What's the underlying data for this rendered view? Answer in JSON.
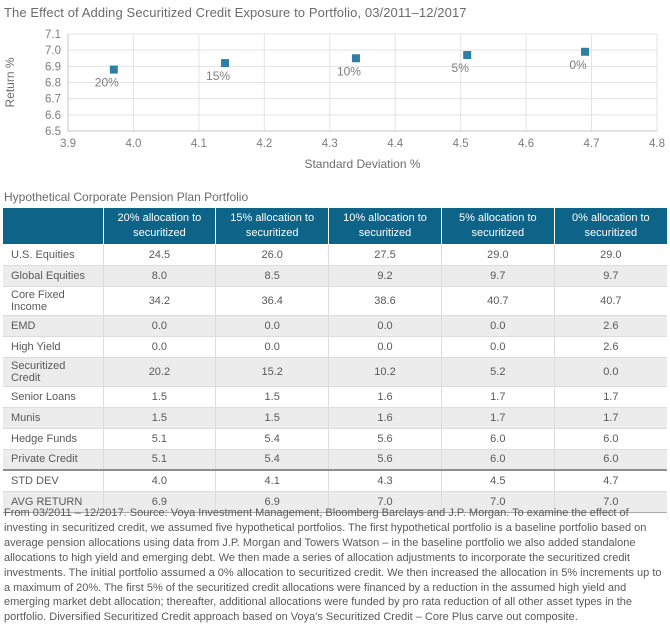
{
  "page": {
    "title": "The Effect of Adding Securitized Credit Exposure to Portfolio, 03/2011–12/2017",
    "section_title": "Hypothetical Corporate Pension Plan Portfolio",
    "footnote": "From 03/2011 – 12/2017. Source: Voya Investment Management, Bloomberg Barclays and J.P. Morgan. To examine the effect of investing in securitized credit, we assumed five hypothetical portfolios. The first hypothetical portfolio is a baseline portfolio based on average pension allocations using data from J.P. Morgan and Towers Watson – in the baseline portfolio we also added standalone allocations to high yield and emerging debt. We then made a series of allocation adjustments to incorporate the securitized credit investments. The initial portfolio assumed a 0% allocation to securitized credit. We then increased the allocation in 5% increments up to a maximum of 20%. The first 5% of the securitized credit allocations were financed by a reduction in the assumed high yield and emerging market debt allocation; thereafter, additional allocations were funded by pro rata reduction of all other asset types in the portfolio. Diversified Securitized Credit approach based on Voya's Securitized Credit – Core Plus carve out composite."
  },
  "colors": {
    "header_teal": "#0d6488",
    "marker_teal": "#2e7ea6",
    "grid": "#e3e3e3",
    "axis": "#c6c6c6",
    "tick_text": "#7d7d7d",
    "axis_title_text": "#6e6e6e",
    "body_text": "#595959",
    "stripe": "#ececec"
  },
  "chart_data": {
    "type": "scatter",
    "title": "The Effect of Adding Securitized Credit Exposure to Portfolio, 03/2011–12/2017",
    "xlabel": "Standard Deviation %",
    "ylabel": "Return %",
    "xlim": [
      3.9,
      4.8
    ],
    "ylim": [
      6.5,
      7.1
    ],
    "x_tick_step": 0.1,
    "y_tick_step": 0.1,
    "grid": true,
    "legend": "none",
    "marker": "square",
    "points": [
      {
        "label": "20%",
        "x": 3.97,
        "y": 6.88
      },
      {
        "label": "15%",
        "x": 4.14,
        "y": 6.92
      },
      {
        "label": "10%",
        "x": 4.34,
        "y": 6.95
      },
      {
        "label": "5%",
        "x": 4.51,
        "y": 6.97
      },
      {
        "label": "0%",
        "x": 4.69,
        "y": 6.99
      }
    ]
  },
  "table": {
    "columns": [
      "",
      "20% allocation to securitized",
      "15% allocation to securitized",
      "10% allocation to securitized",
      "5% allocation to securitized",
      "0% allocation to securitized"
    ],
    "rows": [
      {
        "label": "U.S. Equities",
        "values": [
          "24.5",
          "26.0",
          "27.5",
          "29.0",
          "29.0"
        ]
      },
      {
        "label": "Global Equities",
        "values": [
          "8.0",
          "8.5",
          "9.2",
          "9.7",
          "9.7"
        ]
      },
      {
        "label": "Core Fixed Income",
        "values": [
          "34.2",
          "36.4",
          "38.6",
          "40.7",
          "40.7"
        ]
      },
      {
        "label": "EMD",
        "values": [
          "0.0",
          "0.0",
          "0.0",
          "0.0",
          "2.6"
        ]
      },
      {
        "label": "High Yield",
        "values": [
          "0.0",
          "0.0",
          "0.0",
          "0.0",
          "2.6"
        ]
      },
      {
        "label": "Securitized Credit",
        "values": [
          "20.2",
          "15.2",
          "10.2",
          "5.2",
          "0.0"
        ]
      },
      {
        "label": "Senior Loans",
        "values": [
          "1.5",
          "1.5",
          "1.6",
          "1.7",
          "1.7"
        ]
      },
      {
        "label": "Munis",
        "values": [
          "1.5",
          "1.5",
          "1.6",
          "1.7",
          "1.7"
        ]
      },
      {
        "label": "Hedge Funds",
        "values": [
          "5.1",
          "5.4",
          "5.6",
          "6.0",
          "6.0"
        ]
      },
      {
        "label": "Private Credit",
        "values": [
          "5.1",
          "5.4",
          "5.6",
          "6.0",
          "6.0"
        ]
      },
      {
        "label": "STD DEV",
        "values": [
          "4.0",
          "4.1",
          "4.3",
          "4.5",
          "4.7"
        ],
        "summary": true
      },
      {
        "label": "AVG RETURN",
        "values": [
          "6.9",
          "6.9",
          "7.0",
          "7.0",
          "7.0"
        ]
      }
    ]
  }
}
